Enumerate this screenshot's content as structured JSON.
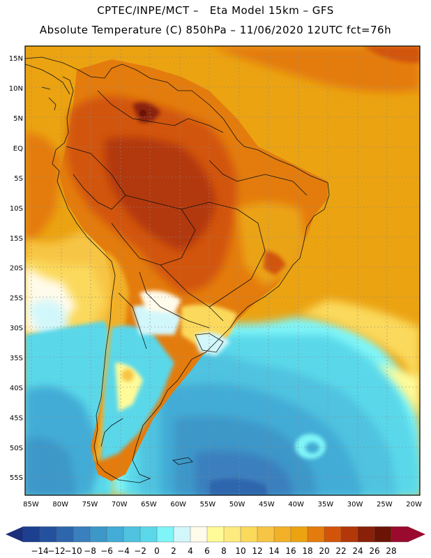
{
  "header": {
    "title_line1": "CPTEC/INPE/MCT –   Eta Model 15km – GFS",
    "title_line2": "Absolute Temperature (C) 850hPa – 11/06/2020 12UTC fct=76h"
  },
  "map": {
    "lon_range": [
      -86,
      -19
    ],
    "lat_range": [
      -58,
      17
    ],
    "lon_ticks": [
      "85W",
      "80W",
      "75W",
      "70W",
      "65W",
      "60W",
      "55W",
      "50W",
      "45W",
      "40W",
      "35W",
      "30W",
      "25W",
      "20W"
    ],
    "lon_values": [
      -85,
      -80,
      -75,
      -70,
      -65,
      -60,
      -55,
      -50,
      -45,
      -40,
      -35,
      -30,
      -25,
      -20
    ],
    "lat_ticks": [
      "15N",
      "10N",
      "5N",
      "EQ",
      "5S",
      "10S",
      "15S",
      "20S",
      "25S",
      "30S",
      "35S",
      "40S",
      "45S",
      "50S",
      "55S"
    ],
    "lat_values": [
      15,
      10,
      5,
      0,
      -5,
      -10,
      -15,
      -20,
      -25,
      -30,
      -35,
      -40,
      -45,
      -50,
      -55
    ]
  },
  "colorbar": {
    "labels": [
      "-14",
      "-12",
      "-10",
      "-8",
      "-6",
      "-4",
      "-2",
      "0",
      "2",
      "4",
      "6",
      "8",
      "10",
      "12",
      "14",
      "16",
      "18",
      "20",
      "22",
      "24",
      "26",
      "28"
    ],
    "colors": [
      "#1d3f8f",
      "#24519e",
      "#2e66ad",
      "#3a7fbe",
      "#3d97c9",
      "#43acd6",
      "#4fc3e0",
      "#5ad8ea",
      "#7ff5f8",
      "#d2f7fb",
      "#fffbea",
      "#fffb99",
      "#fdeb80",
      "#fbd95b",
      "#f7c545",
      "#f2b027",
      "#eba312",
      "#e47c0d",
      "#d2540b",
      "#b2380a",
      "#8a2007",
      "#6b1405",
      "#9a0a2e"
    ],
    "left_arrow_color": "#1c2f7a",
    "right_arrow_color": "#9a0a2e"
  }
}
